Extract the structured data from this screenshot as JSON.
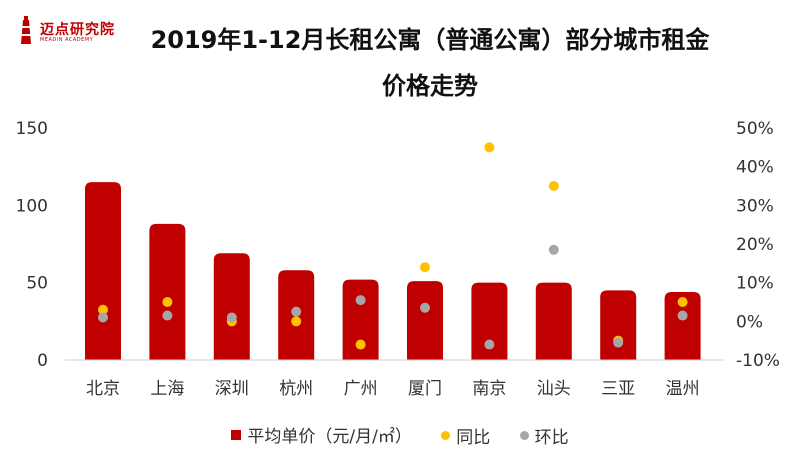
{
  "logo": {
    "name": "迈点研究院",
    "tagline": "MEADIN ACADEMY"
  },
  "chart_data": {
    "type": "bar",
    "title_line1": "2019年1-12月长租公寓（普通公寓）部分城市租金",
    "title_line2": "价格走势",
    "categories": [
      "北京",
      "上海",
      "深圳",
      "杭州",
      "广州",
      "厦门",
      "南京",
      "汕头",
      "三亚",
      "温州"
    ],
    "bar_series": {
      "name": "平均单价（元/月/㎡）",
      "color": "#c00000",
      "values": [
        115,
        88,
        69,
        58,
        52,
        51,
        50,
        50,
        45,
        44
      ]
    },
    "line_series": [
      {
        "name": "同比",
        "color": "#ffc000",
        "values": [
          3,
          5,
          0,
          0,
          -6,
          14,
          45,
          35,
          -5,
          5
        ]
      },
      {
        "name": "环比",
        "color": "#a6a6a6",
        "values": [
          1,
          1.5,
          1,
          2.5,
          5.5,
          3.5,
          -6,
          18.5,
          -5.5,
          1.5
        ]
      }
    ],
    "y_left": {
      "min": 0,
      "max": 150,
      "ticks": [
        "0",
        "50",
        "100",
        "150"
      ]
    },
    "y_right": {
      "min": -10,
      "max": 50,
      "ticks": [
        "-10%",
        "0%",
        "10%",
        "20%",
        "30%",
        "40%",
        "50%"
      ]
    },
    "legend": {
      "position": "bottom"
    }
  }
}
